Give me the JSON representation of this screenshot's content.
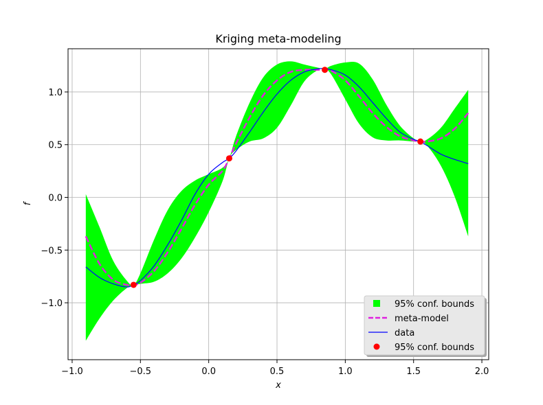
{
  "chart_data": {
    "type": "line",
    "title": "Kriging meta-modeling",
    "xlabel": "x",
    "ylabel": "f",
    "xlim": [
      -1.03,
      2.05
    ],
    "ylim": [
      -1.54,
      1.41
    ],
    "xticks": [
      -1.0,
      -0.5,
      0.0,
      0.5,
      1.0,
      1.5,
      2.0
    ],
    "xtick_labels": [
      "−1.0",
      "−0.5",
      "0.0",
      "0.5",
      "1.0",
      "1.5",
      "2.0"
    ],
    "yticks": [
      -1.0,
      -0.5,
      0.0,
      0.5,
      1.0
    ],
    "ytick_labels": [
      "−1.0",
      "−0.5",
      "0.0",
      "0.5",
      "1.0"
    ],
    "grid": true,
    "legend_position": "lower-right",
    "series": [
      {
        "name": "95% conf. bounds",
        "kind": "band",
        "color": "#00ff00",
        "x": [
          -0.9,
          -0.8,
          -0.7,
          -0.6,
          -0.55,
          -0.5,
          -0.4,
          -0.3,
          -0.2,
          -0.1,
          0.0,
          0.1,
          0.15,
          0.2,
          0.3,
          0.4,
          0.5,
          0.6,
          0.7,
          0.8,
          0.85,
          0.9,
          1.0,
          1.1,
          1.2,
          1.3,
          1.4,
          1.5,
          1.55,
          1.6,
          1.7,
          1.8,
          1.9
        ],
        "lower": [
          -1.36,
          -1.15,
          -0.98,
          -0.86,
          -0.83,
          -0.82,
          -0.8,
          -0.72,
          -0.58,
          -0.38,
          -0.14,
          0.15,
          0.37,
          0.45,
          0.53,
          0.56,
          0.66,
          0.87,
          1.1,
          1.21,
          1.22,
          1.16,
          0.93,
          0.7,
          0.57,
          0.54,
          0.54,
          0.53,
          0.53,
          0.49,
          0.3,
          0.01,
          -0.37
        ],
        "upper": [
          0.03,
          -0.28,
          -0.6,
          -0.79,
          -0.83,
          -0.72,
          -0.4,
          -0.12,
          0.06,
          0.16,
          0.22,
          0.28,
          0.37,
          0.58,
          0.9,
          1.14,
          1.26,
          1.29,
          1.26,
          1.23,
          1.22,
          1.25,
          1.28,
          1.27,
          1.12,
          0.88,
          0.68,
          0.56,
          0.53,
          0.55,
          0.66,
          0.84,
          1.02
        ]
      },
      {
        "name": "meta-model",
        "kind": "dashed-line",
        "color": "#e020e0",
        "x": [
          -0.9,
          -0.8,
          -0.7,
          -0.6,
          -0.55,
          -0.5,
          -0.4,
          -0.3,
          -0.2,
          -0.1,
          0.0,
          0.1,
          0.15,
          0.2,
          0.3,
          0.4,
          0.5,
          0.6,
          0.7,
          0.8,
          0.85,
          0.9,
          1.0,
          1.1,
          1.2,
          1.3,
          1.4,
          1.5,
          1.55,
          1.6,
          1.7,
          1.8,
          1.9
        ],
        "y": [
          -0.37,
          -0.63,
          -0.78,
          -0.83,
          -0.83,
          -0.81,
          -0.7,
          -0.52,
          -0.3,
          -0.07,
          0.12,
          0.25,
          0.37,
          0.51,
          0.76,
          0.97,
          1.11,
          1.19,
          1.21,
          1.21,
          1.22,
          1.2,
          1.11,
          0.96,
          0.8,
          0.67,
          0.58,
          0.54,
          0.53,
          0.53,
          0.56,
          0.65,
          0.8
        ]
      },
      {
        "name": "data",
        "kind": "line",
        "color": "#0000ff",
        "x": [
          -0.9,
          -0.8,
          -0.7,
          -0.6,
          -0.55,
          -0.5,
          -0.4,
          -0.3,
          -0.2,
          -0.1,
          0.0,
          0.1,
          0.15,
          0.2,
          0.3,
          0.4,
          0.5,
          0.6,
          0.7,
          0.8,
          0.85,
          0.9,
          1.0,
          1.1,
          1.2,
          1.3,
          1.4,
          1.5,
          1.55,
          1.6,
          1.7,
          1.8,
          1.9
        ],
        "y": [
          -0.66,
          -0.76,
          -0.82,
          -0.85,
          -0.83,
          -0.79,
          -0.65,
          -0.45,
          -0.22,
          0.03,
          0.22,
          0.33,
          0.37,
          0.44,
          0.62,
          0.81,
          0.98,
          1.11,
          1.19,
          1.22,
          1.22,
          1.21,
          1.16,
          1.05,
          0.9,
          0.75,
          0.62,
          0.55,
          0.53,
          0.49,
          0.41,
          0.36,
          0.32
        ]
      },
      {
        "name": "95% conf. bounds",
        "kind": "points",
        "color": "#ff0000",
        "x": [
          -0.55,
          0.15,
          0.85,
          1.55
        ],
        "y": [
          -0.83,
          0.37,
          1.21,
          0.53
        ]
      }
    ]
  }
}
